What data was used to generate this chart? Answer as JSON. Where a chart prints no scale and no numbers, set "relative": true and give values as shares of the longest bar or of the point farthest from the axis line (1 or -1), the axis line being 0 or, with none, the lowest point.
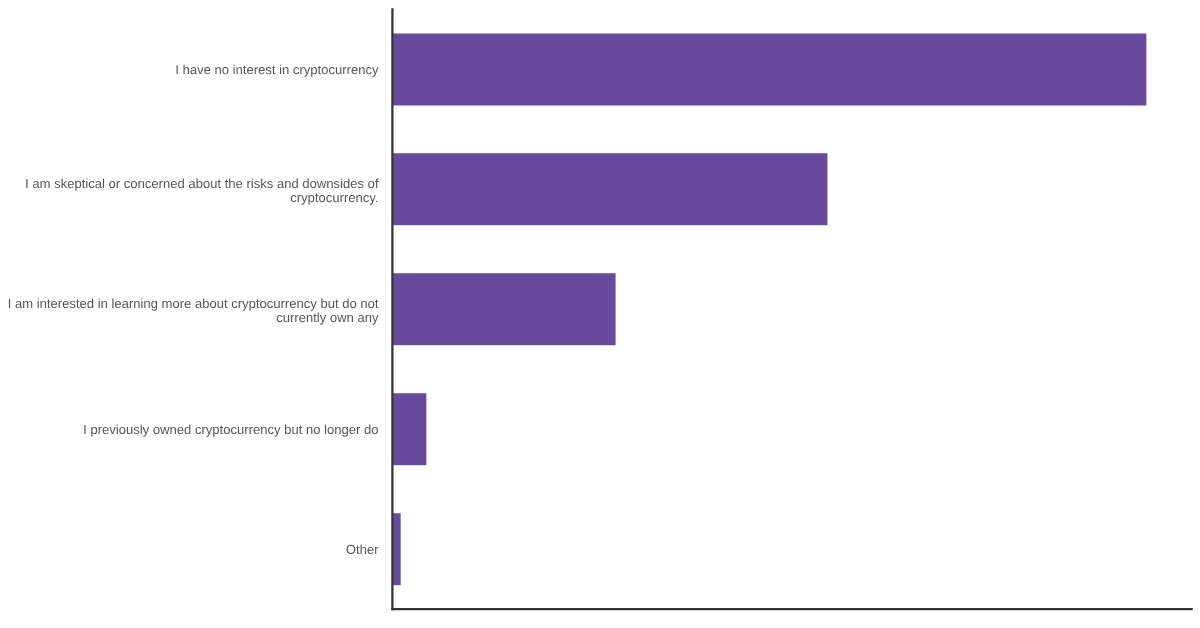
{
  "chart_data": {
    "type": "bar",
    "orientation": "horizontal",
    "relative": true,
    "categories": [
      "I have no interest in cryptocurrency",
      "I am skeptical or concerned about the risks and downsides of\ncryptocurrency.",
      "I am interested in learning more about cryptocurrency but do not\ncurrently own any",
      "I previously owned cryptocurrency but no longer do",
      "Other"
    ],
    "values": [
      1,
      0.577,
      0.296,
      0.045,
      0.011
    ],
    "color": "#69499c",
    "grid": false,
    "legend": false
  }
}
